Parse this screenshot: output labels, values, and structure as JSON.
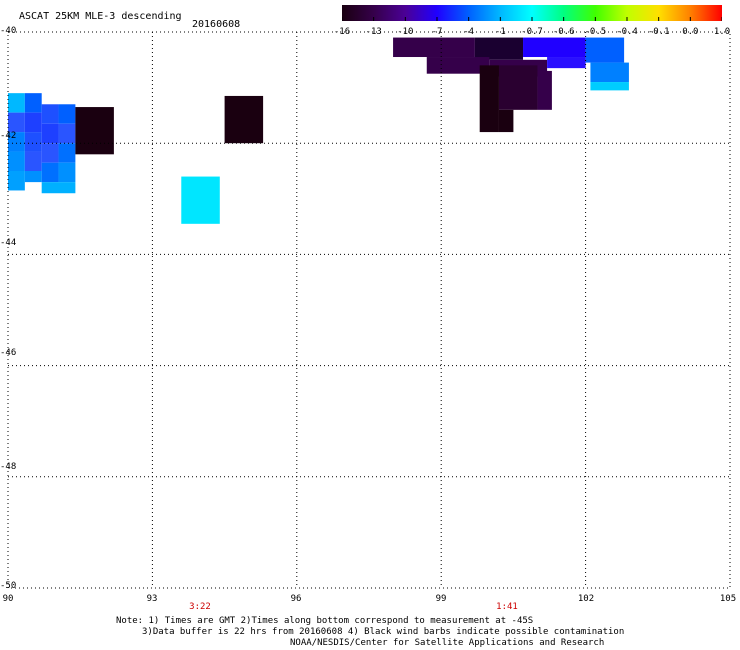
{
  "header": {
    "title": "ASCAT 25KM MLE-3 descending",
    "date": "20160608"
  },
  "colorbar": {
    "labels": [
      "-16",
      "-13",
      "-10",
      "-7",
      "-4",
      "-1",
      "-0.7",
      "-0.6",
      "-0.5",
      "-0.4",
      "-0.1",
      "0.0",
      "1.0"
    ],
    "colors": [
      "#1a0010",
      "#35004a",
      "#4b0096",
      "#2000ff",
      "#0060ff",
      "#00b8ff",
      "#00ffff",
      "#00ff80",
      "#40ff00",
      "#c0ff00",
      "#ffe000",
      "#ff8000",
      "#ff0000"
    ]
  },
  "axes": {
    "lat_labels": [
      "-40",
      "-42",
      "-44",
      "-46",
      "-48",
      "-50"
    ],
    "lon_labels": [
      "90",
      "93",
      "96",
      "99",
      "102",
      "105"
    ],
    "times": [
      "3:22",
      "1:41"
    ]
  },
  "map": {
    "lon_range": [
      90,
      105
    ],
    "lat_range": [
      -50,
      -40
    ],
    "cells": [
      {
        "lon": 90.0,
        "lat": -41.1,
        "w": 0.35,
        "h": 0.35,
        "color": "#00b8ff"
      },
      {
        "lon": 90.35,
        "lat": -41.1,
        "w": 0.35,
        "h": 0.35,
        "color": "#0060ff"
      },
      {
        "lon": 90.7,
        "lat": -41.3,
        "w": 0.35,
        "h": 0.35,
        "color": "#1e50ff"
      },
      {
        "lon": 91.05,
        "lat": -41.3,
        "w": 0.35,
        "h": 0.35,
        "color": "#0060ff"
      },
      {
        "lon": 90.0,
        "lat": -41.45,
        "w": 0.35,
        "h": 0.35,
        "color": "#2a55ff"
      },
      {
        "lon": 90.35,
        "lat": -41.45,
        "w": 0.35,
        "h": 0.35,
        "color": "#1e40ff"
      },
      {
        "lon": 90.7,
        "lat": -41.65,
        "w": 0.35,
        "h": 0.35,
        "color": "#1e40ff"
      },
      {
        "lon": 91.05,
        "lat": -41.65,
        "w": 0.35,
        "h": 0.35,
        "color": "#2a55ff"
      },
      {
        "lon": 90.0,
        "lat": -41.8,
        "w": 0.35,
        "h": 0.35,
        "color": "#0080ff"
      },
      {
        "lon": 90.35,
        "lat": -41.8,
        "w": 0.35,
        "h": 0.35,
        "color": "#1e50ff"
      },
      {
        "lon": 90.7,
        "lat": -42.0,
        "w": 0.35,
        "h": 0.35,
        "color": "#2a55ff"
      },
      {
        "lon": 91.05,
        "lat": -42.0,
        "w": 0.35,
        "h": 0.35,
        "color": "#0070ff"
      },
      {
        "lon": 90.0,
        "lat": -42.15,
        "w": 0.35,
        "h": 0.35,
        "color": "#0090ff"
      },
      {
        "lon": 90.35,
        "lat": -42.15,
        "w": 0.35,
        "h": 0.35,
        "color": "#2a55ff"
      },
      {
        "lon": 90.7,
        "lat": -42.35,
        "w": 0.35,
        "h": 0.35,
        "color": "#0070ff"
      },
      {
        "lon": 91.05,
        "lat": -42.35,
        "w": 0.35,
        "h": 0.35,
        "color": "#0090ff"
      },
      {
        "lon": 90.0,
        "lat": -42.5,
        "w": 0.35,
        "h": 0.35,
        "color": "#00a0ff"
      },
      {
        "lon": 90.35,
        "lat": -42.5,
        "w": 0.35,
        "h": 0.2,
        "color": "#0090ff"
      },
      {
        "lon": 90.7,
        "lat": -42.7,
        "w": 0.7,
        "h": 0.2,
        "color": "#00b0ff"
      },
      {
        "lon": 91.4,
        "lat": -41.35,
        "w": 0.8,
        "h": 0.85,
        "color": "#1a0010"
      },
      {
        "lon": 94.5,
        "lat": -41.15,
        "w": 0.8,
        "h": 0.85,
        "color": "#1a0010"
      },
      {
        "lon": 93.6,
        "lat": -42.6,
        "w": 0.8,
        "h": 0.85,
        "color": "#00e6ff"
      },
      {
        "lon": 98.0,
        "lat": -40.1,
        "w": 1.7,
        "h": 0.35,
        "color": "#35004a"
      },
      {
        "lon": 99.7,
        "lat": -40.1,
        "w": 1.0,
        "h": 0.4,
        "color": "#1a0030"
      },
      {
        "lon": 100.7,
        "lat": -40.1,
        "w": 1.3,
        "h": 0.35,
        "color": "#2000ff"
      },
      {
        "lon": 102.0,
        "lat": -40.1,
        "w": 0.8,
        "h": 0.45,
        "color": "#0060ff"
      },
      {
        "lon": 98.7,
        "lat": -40.45,
        "w": 1.3,
        "h": 0.3,
        "color": "#35004a"
      },
      {
        "lon": 100.0,
        "lat": -40.5,
        "w": 1.2,
        "h": 0.3,
        "color": "#35004a"
      },
      {
        "lon": 101.2,
        "lat": -40.45,
        "w": 0.8,
        "h": 0.2,
        "color": "#2a10ff"
      },
      {
        "lon": 102.1,
        "lat": -40.55,
        "w": 0.8,
        "h": 0.35,
        "color": "#0080ff"
      },
      {
        "lon": 102.1,
        "lat": -40.9,
        "w": 0.8,
        "h": 0.15,
        "color": "#00ccff"
      },
      {
        "lon": 99.8,
        "lat": -40.6,
        "w": 0.4,
        "h": 1.2,
        "color": "#1a0010"
      },
      {
        "lon": 100.2,
        "lat": -40.6,
        "w": 0.8,
        "h": 0.8,
        "color": "#2a0030"
      },
      {
        "lon": 100.2,
        "lat": -41.4,
        "w": 0.3,
        "h": 0.4,
        "color": "#1a0010"
      },
      {
        "lon": 101.0,
        "lat": -40.7,
        "w": 0.3,
        "h": 0.7,
        "color": "#35004a"
      }
    ]
  },
  "notes": [
    "Note: 1) Times are GMT 2)Times along bottom correspond to measurement at -45S",
    "3)Data buffer is 22 hrs from 20160608 4) Black wind barbs indicate possible contamination",
    "NOAA/NESDIS/Center for Satellite Applications and Research"
  ]
}
